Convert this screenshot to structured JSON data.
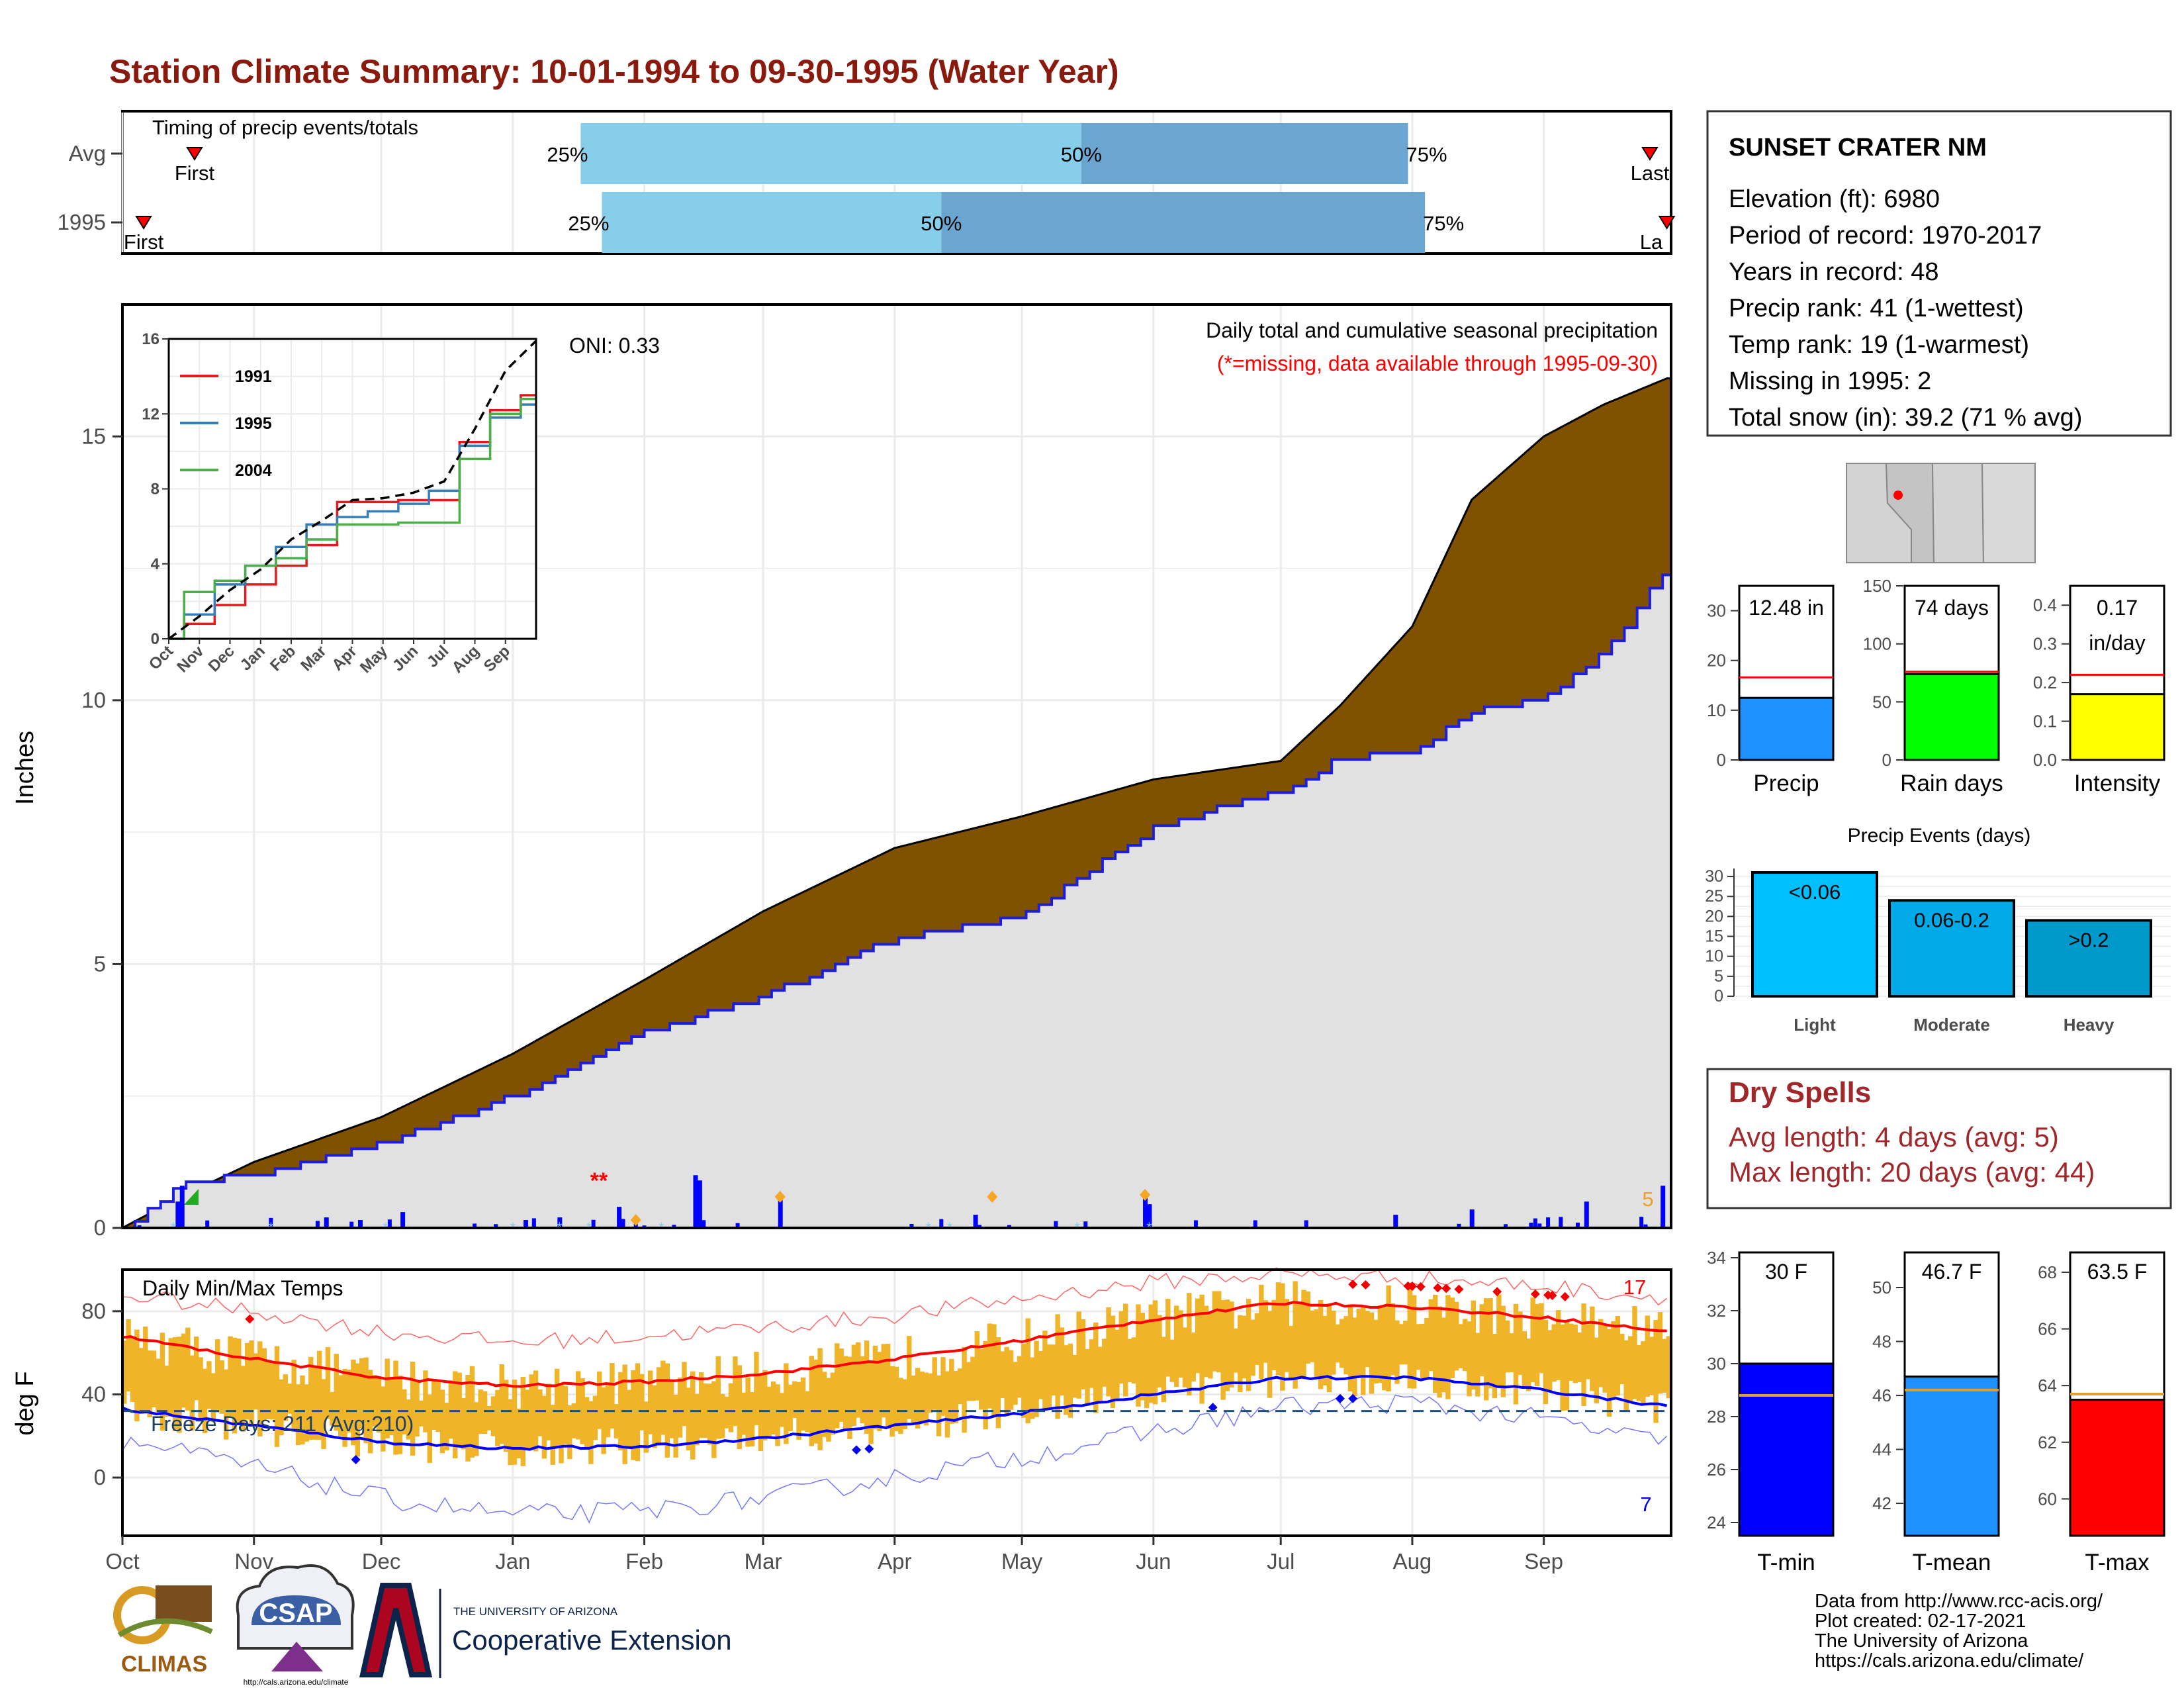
{
  "title": "Station Climate Summary: 10-01-1994 to 09-30-1995 (Water Year)",
  "colors": {
    "title": "#8b1a0e",
    "brown": "#7f5100",
    "blue_line": "#1d1de0",
    "light_gray": "#e1e1e1",
    "light_blue": "#87ceeb",
    "mid_blue": "#6aa6d0",
    "orange": "#f0b429",
    "red": "#ff0000",
    "green": "#00ff00",
    "yellow": "#ffff00",
    "dry_red": "#a0282b"
  },
  "timing": {
    "label": "Timing of precip events/totals",
    "rows": [
      {
        "name": "Avg",
        "first_label": "First",
        "last_label": "Last",
        "p25": "25%",
        "p50": "50%",
        "p75": "75%",
        "first_date": "1994-10-18",
        "last_date": "1995-09-26",
        "q25_date": "1995-01-17",
        "q50_date": "1995-05-15",
        "q75_date": "1995-07-31"
      },
      {
        "name": "1995",
        "first_label": "First",
        "last_label": "La",
        "p25": "25%",
        "p50": "50%",
        "p75": "75%",
        "first_date": "1994-10-06",
        "last_date": "1995-09-30",
        "q25_date": "1995-01-22",
        "q50_date": "1995-04-12",
        "q75_date": "1995-08-04"
      }
    ]
  },
  "precip_panel": {
    "ylabel": "Inches",
    "subtitle": "Daily total and cumulative seasonal precipitation",
    "missing_note": "(*=missing, data available through 1995-09-30)",
    "oni": "ONI: 0.33",
    "corner_count": "5",
    "missing_marks": "**"
  },
  "inset": {
    "legend": [
      "1991",
      "1995",
      "2004"
    ],
    "yticks": [
      "0",
      "4",
      "8",
      "12",
      "16"
    ],
    "months": [
      "Oct",
      "Nov",
      "Dec",
      "Jan",
      "Feb",
      "Mar",
      "Apr",
      "May",
      "Jun",
      "Jul",
      "Aug",
      "Sep"
    ]
  },
  "temp_panel": {
    "ylabel": "deg F",
    "label": "Daily Min/Max Temps",
    "freeze": "Freeze Days: 211 (Avg:210)",
    "max_count": "17",
    "min_count": "7"
  },
  "months": [
    "Oct",
    "Nov",
    "Dec",
    "Jan",
    "Feb",
    "Mar",
    "Apr",
    "May",
    "Jun",
    "Jul",
    "Aug",
    "Sep"
  ],
  "station": {
    "name": "SUNSET CRATER NM",
    "lines": [
      "Elevation (ft): 6980",
      "Period of record: 1970-2017",
      "Years in record: 48",
      "Precip rank: 41 (1-wettest)",
      "Temp rank: 19 (1-warmest)",
      "Missing in 1995: 2",
      "Total snow (in): 39.2 (71 % avg)"
    ]
  },
  "mini_bars": [
    {
      "label": "Precip",
      "value_text": "12.48 in",
      "value": 12.48,
      "avg": 16.6,
      "ymax": 35,
      "yticks": [
        "0",
        "10",
        "20",
        "30"
      ],
      "tickvals": [
        0,
        10,
        20,
        30
      ],
      "color": "#1e90ff"
    },
    {
      "label": "Rain days",
      "value_text": "74 days",
      "value": 74,
      "avg": 76,
      "ymax": 150,
      "yticks": [
        "0",
        "50",
        "100",
        "150"
      ],
      "tickvals": [
        0,
        50,
        100,
        150
      ],
      "color": "#00ff00"
    },
    {
      "label": "Intensity",
      "value_text": "0.17",
      "value_text2": "in/day",
      "value": 0.17,
      "avg": 0.22,
      "ymax": 0.45,
      "yticks": [
        "0.0",
        "0.1",
        "0.2",
        "0.3",
        "0.4"
      ],
      "tickvals": [
        0,
        0.1,
        0.2,
        0.3,
        0.4
      ],
      "color": "#ffff00"
    }
  ],
  "events": {
    "title": "Precip Events (days)",
    "bars": [
      {
        "label": "Light",
        "range": "<0.06",
        "value": 31
      },
      {
        "label": "Moderate",
        "range": "0.06-0.2",
        "value": 24
      },
      {
        "label": "Heavy",
        "range": ">0.2",
        "value": 19
      }
    ],
    "yticks": [
      "0",
      "5",
      "10",
      "15",
      "20",
      "25",
      "30"
    ]
  },
  "dry": {
    "title": "Dry Spells",
    "avg": "Avg length: 4 days (avg: 5)",
    "max": "Max length: 20 days (avg: 44)"
  },
  "temp_bars": [
    {
      "label": "T-min",
      "value_text": "30 F",
      "value": 30,
      "avg": 28.8,
      "ylim": [
        23.5,
        34.2
      ],
      "yticks": [
        "24",
        "26",
        "28",
        "30",
        "32",
        "34"
      ],
      "tickvals": [
        24,
        26,
        28,
        30,
        32,
        34
      ],
      "color": "#0000ff"
    },
    {
      "label": "T-mean",
      "value_text": "46.7 F",
      "value": 46.7,
      "avg": 46.2,
      "ylim": [
        40.8,
        51.3
      ],
      "yticks": [
        "42",
        "44",
        "46",
        "48",
        "50"
      ],
      "tickvals": [
        42,
        44,
        46,
        48,
        50
      ],
      "color": "#1e90ff"
    },
    {
      "label": "T-max",
      "value_text": "63.5 F",
      "value": 63.5,
      "avg": 63.7,
      "ylim": [
        58.7,
        68.7
      ],
      "yticks": [
        "60",
        "62",
        "64",
        "66",
        "68"
      ],
      "tickvals": [
        60,
        62,
        64,
        66,
        68
      ],
      "color": "#ff0000"
    }
  ],
  "footer": {
    "lines": [
      "Data from http://www.rcc-acis.org/",
      "Plot created: 02-17-2021",
      "The University of Arizona",
      "https://cals.arizona.edu/climate/"
    ],
    "climas": "CLIMAS",
    "csap": "CSAP",
    "csap_url": "http://cals.arizona.edu/climate",
    "ua_small": "THE UNIVERSITY OF ARIZONA",
    "ua_big": "Cooperative Extension"
  },
  "chart_data": [
    {
      "type": "area",
      "title": "Daily total and cumulative seasonal precipitation",
      "ylabel": "Inches",
      "ylim": [
        0,
        17.5
      ],
      "yticks": [
        0,
        5,
        10,
        15
      ],
      "x": [
        "10-01",
        "10-15",
        "11-01",
        "12-01",
        "01-01",
        "02-01",
        "03-01",
        "04-01",
        "05-01",
        "06-01",
        "07-01",
        "07-15",
        "08-01",
        "08-15",
        "09-01",
        "09-15",
        "09-30"
      ],
      "series": [
        {
          "name": "1995",
          "values": [
            0.0,
            0.85,
            1.0,
            1.6,
            2.5,
            3.7,
            4.4,
            5.5,
            5.9,
            7.6,
            8.3,
            8.9,
            9.0,
            9.8,
            10.0,
            10.9,
            12.5
          ]
        },
        {
          "name": "Avg",
          "values": [
            0.0,
            0.6,
            1.25,
            2.1,
            3.3,
            4.7,
            6.0,
            7.2,
            7.8,
            8.5,
            8.85,
            9.9,
            11.4,
            13.8,
            15.0,
            15.6,
            16.1
          ]
        }
      ],
      "daily_precip": [
        {
          "date": "10-14",
          "inches": 0.5
        },
        {
          "date": "10-15",
          "inches": 0.8
        },
        {
          "date": "11-18",
          "inches": 0.2
        },
        {
          "date": "11-26",
          "inches": 0.15
        },
        {
          "date": "12-06",
          "inches": 0.3
        },
        {
          "date": "01-04",
          "inches": 0.15
        },
        {
          "date": "01-12",
          "inches": 0.2
        },
        {
          "date": "01-26",
          "inches": 0.4
        },
        {
          "date": "02-13",
          "inches": 1.0
        },
        {
          "date": "02-14",
          "inches": 0.9
        },
        {
          "date": "03-05",
          "inches": 0.55
        },
        {
          "date": "04-20",
          "inches": 0.25
        },
        {
          "date": "05-30",
          "inches": 0.6
        },
        {
          "date": "05-31",
          "inches": 0.45
        },
        {
          "date": "07-28",
          "inches": 0.25
        },
        {
          "date": "08-15",
          "inches": 0.35
        },
        {
          "date": "09-11",
          "inches": 0.5
        },
        {
          "date": "09-29",
          "inches": 0.8
        }
      ]
    },
    {
      "type": "line",
      "title": "",
      "ylim": [
        0,
        16
      ],
      "x": [
        "Oct",
        "Nov",
        "Dec",
        "Jan",
        "Feb",
        "Mar",
        "Apr",
        "May",
        "Jun",
        "Jul",
        "Aug",
        "Sep",
        "Sep-end"
      ],
      "series": [
        {
          "name": "1991",
          "values": [
            0,
            0.8,
            1.8,
            2.9,
            3.9,
            5.0,
            7.3,
            7.3,
            7.4,
            7.4,
            10.5,
            12.2,
            13.0
          ]
        },
        {
          "name": "1995",
          "values": [
            0,
            1.3,
            2.9,
            3.9,
            4.9,
            6.1,
            6.5,
            6.8,
            7.2,
            7.9,
            10.3,
            11.8,
            12.5
          ]
        },
        {
          "name": "2004",
          "values": [
            0,
            2.5,
            3.1,
            3.9,
            4.3,
            5.3,
            6.1,
            6.1,
            6.2,
            6.2,
            9.6,
            12.0,
            12.8
          ]
        },
        {
          "name": "Avg",
          "values": [
            0,
            1.2,
            2.6,
            3.7,
            5.3,
            6.3,
            7.4,
            7.5,
            7.8,
            8.4,
            11.2,
            14.3,
            15.9
          ]
        }
      ]
    },
    {
      "type": "line",
      "title": "Daily Min/Max Temps",
      "ylabel": "deg F",
      "ylim": [
        -28,
        100
      ],
      "yticks": [
        0,
        40,
        80
      ],
      "x": [
        "Oct",
        "Nov",
        "Dec",
        "Jan",
        "Feb",
        "Mar",
        "Apr",
        "May",
        "Jun",
        "Jul",
        "Aug",
        "Sep",
        "Sep-end"
      ],
      "series": [
        {
          "name": "Avg max",
          "values": [
            68,
            57,
            48,
            44,
            46,
            50,
            57,
            66,
            76,
            84,
            82,
            77,
            70
          ]
        },
        {
          "name": "Avg min",
          "values": [
            33,
            25,
            17,
            14,
            15,
            19,
            25,
            31,
            40,
            48,
            48,
            42,
            34
          ]
        },
        {
          "name": "Record high",
          "values": [
            88,
            80,
            70,
            65,
            68,
            72,
            78,
            86,
            94,
            98,
            96,
            92,
            86
          ]
        },
        {
          "name": "Record low",
          "values": [
            18,
            5,
            -10,
            -18,
            -16,
            -10,
            0,
            10,
            22,
            34,
            36,
            28,
            16
          ]
        }
      ],
      "freeze_line": 32
    }
  ]
}
